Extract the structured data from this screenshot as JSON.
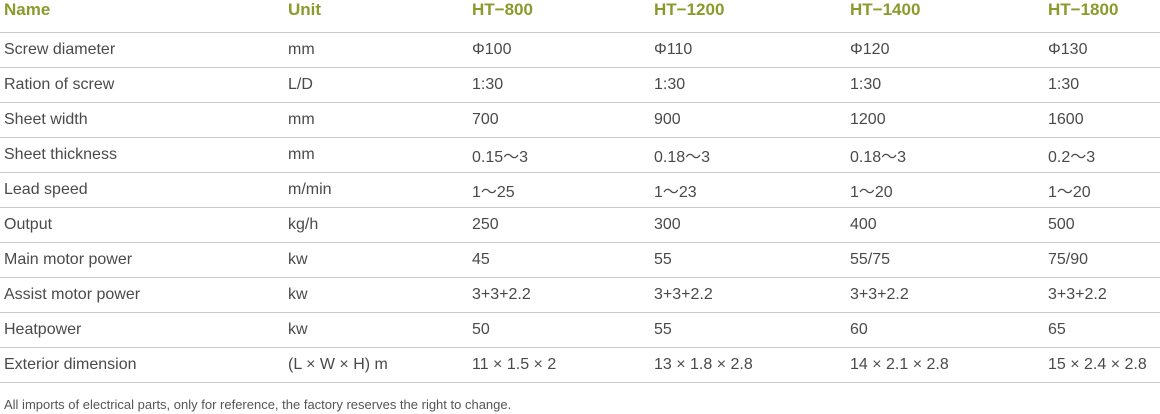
{
  "table": {
    "header": [
      "Name",
      "Unit",
      "HT−800",
      "HT−1200",
      "HT−1400",
      "HT−1800"
    ],
    "rows": [
      [
        "Screw diameter",
        "mm",
        "Φ100",
        "Φ110",
        "Φ120",
        "Φ130"
      ],
      [
        "Ration of screw",
        "L/D",
        "1:30",
        "1:30",
        "1:30",
        "1:30"
      ],
      [
        "Sheet width",
        "mm",
        "700",
        "900",
        "1200",
        "1600"
      ],
      [
        "Sheet thickness",
        "mm",
        "0.15～3",
        "0.18～3",
        "0.18～3",
        "0.2～3"
      ],
      [
        "Lead speed",
        "m/min",
        "1～25",
        "1～23",
        "1～20",
        "1～20"
      ],
      [
        "Output",
        "kg/h",
        "250",
        "300",
        "400",
        "500"
      ],
      [
        "Main motor power",
        "kw",
        "45",
        "55",
        "55/75",
        "75/90"
      ],
      [
        "Assist motor power",
        "kw",
        "3+3+2.2",
        "3+3+2.2",
        "3+3+2.2",
        "3+3+2.2"
      ],
      [
        "Heatpower",
        "kw",
        "50",
        "55",
        "60",
        "65"
      ],
      [
        "Exterior dimension",
        "(L × W × H) m",
        "11 × 1.5 × 2",
        "13 × 1.8 × 2.8",
        "14 × 2.1 × 2.8",
        "15 × 2.4 × 2.8"
      ]
    ]
  },
  "footnote": "All imports of electrical parts, only for reference, the factory reserves the right to change."
}
